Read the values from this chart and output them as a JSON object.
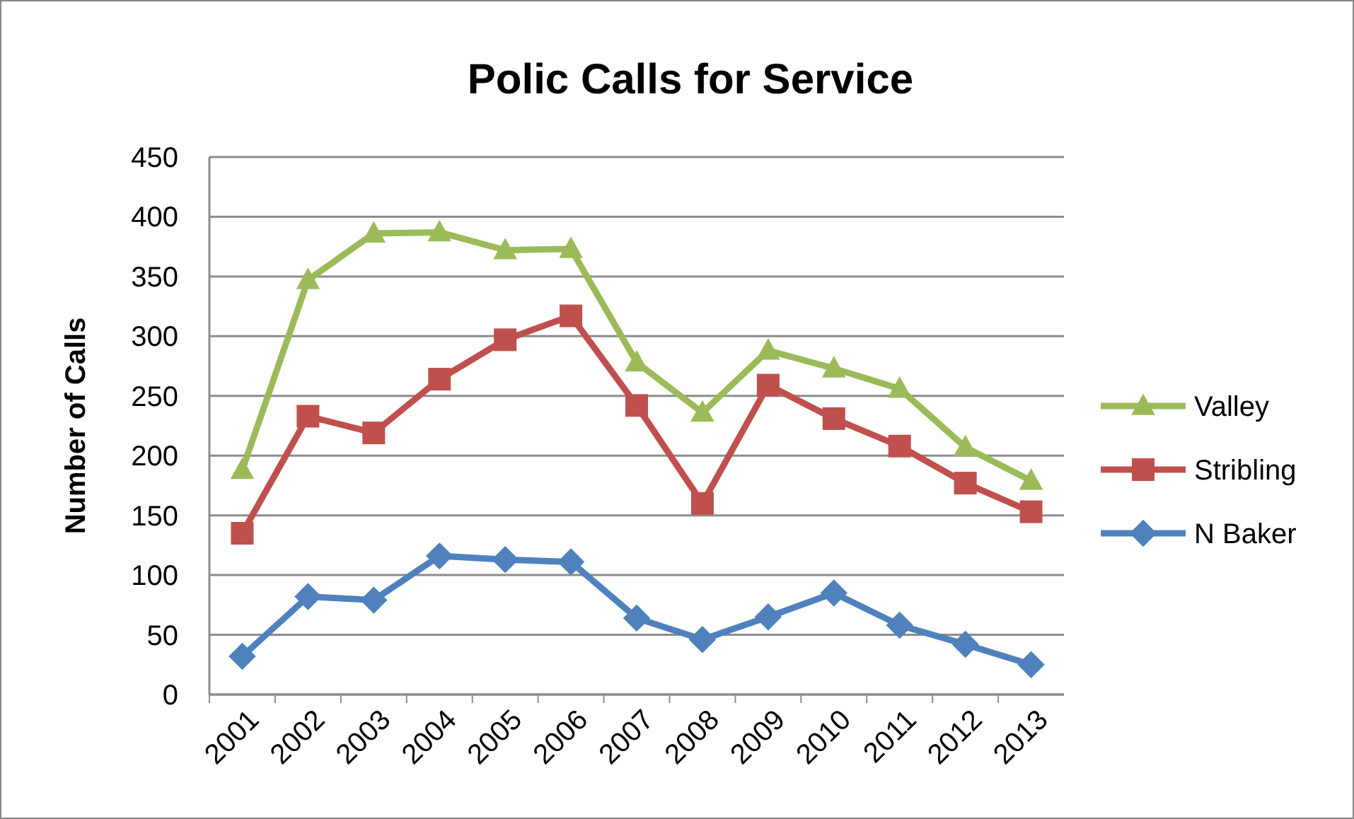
{
  "chart_data": {
    "type": "line",
    "title": "Polic Calls for Service",
    "ylabel": "Number of Calls",
    "categories": [
      "2001",
      "2002",
      "2003",
      "2004",
      "2005",
      "2006",
      "2007",
      "2008",
      "2009",
      "2010",
      "2011",
      "2012",
      "2013"
    ],
    "series": [
      {
        "name": "Valley",
        "color": "#9bbb59",
        "marker": "triangle",
        "values": [
          188,
          347,
          386,
          387,
          372,
          373,
          278,
          236,
          288,
          273,
          256,
          207,
          179
        ]
      },
      {
        "name": "Stribling",
        "color": "#c0504d",
        "marker": "square",
        "values": [
          135,
          233,
          219,
          264,
          297,
          317,
          242,
          160,
          259,
          231,
          208,
          177,
          153
        ]
      },
      {
        "name": "N Baker",
        "color": "#4f81bd",
        "marker": "diamond",
        "values": [
          32,
          82,
          79,
          116,
          113,
          111,
          64,
          46,
          65,
          85,
          58,
          42,
          25
        ]
      }
    ],
    "ylim": [
      0,
      450
    ],
    "yticks": [
      0,
      50,
      100,
      150,
      200,
      250,
      300,
      350,
      400,
      450
    ],
    "grid": "y",
    "legend": "right",
    "line_style": "solid"
  }
}
